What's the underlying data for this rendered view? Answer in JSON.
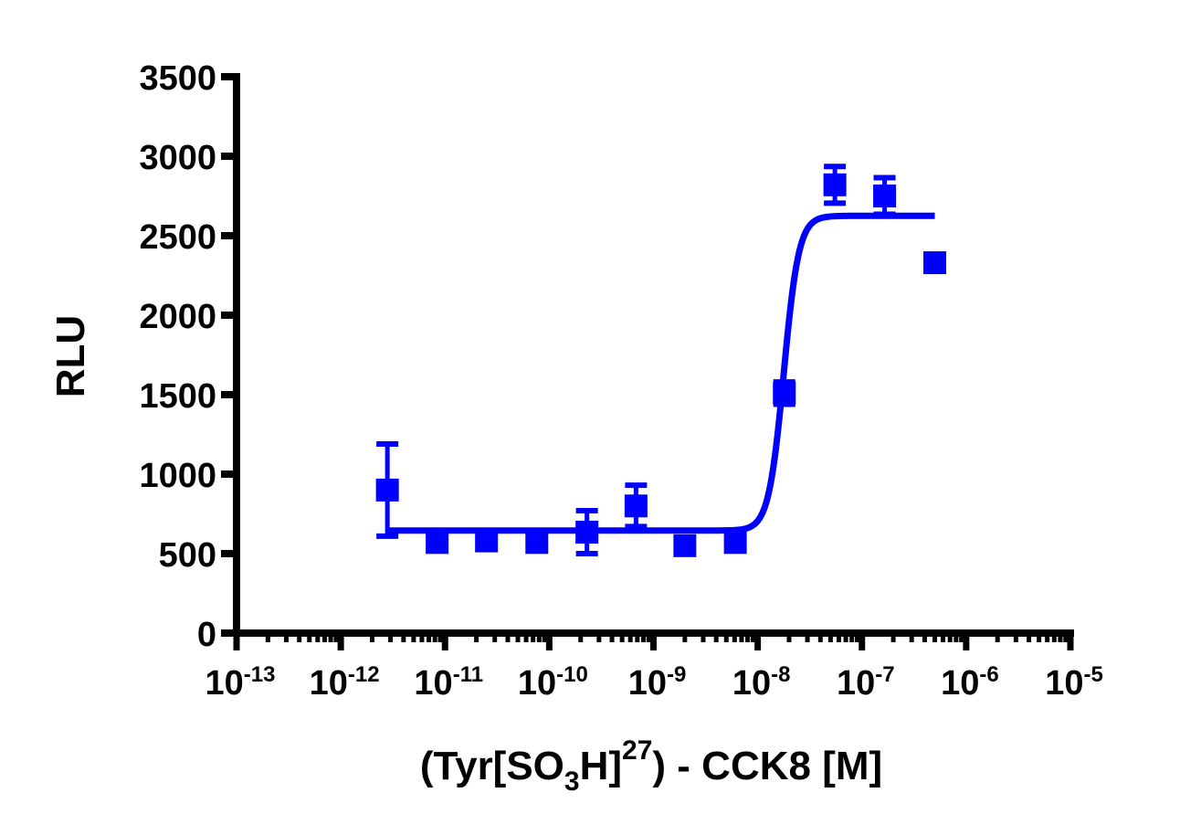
{
  "chart_data": {
    "type": "scatter",
    "title": "",
    "xlabel": "(Tyr[SO3H]27) - CCK8 [M]",
    "xlabel_parts": {
      "pre": "(Tyr[SO",
      "sub": "3",
      "mid": "H]",
      "sup": "27",
      "post": ") - CCK8 [M]"
    },
    "ylabel": "RLU",
    "xscale": "log",
    "xlim": [
      1e-13,
      1e-05
    ],
    "ylim": [
      0,
      3500
    ],
    "x_ticks": [
      -13,
      -12,
      -11,
      -10,
      -9,
      -8,
      -7,
      -6,
      -5
    ],
    "x_tick_labels": [
      "10-13",
      "10-12",
      "10-11",
      "10-10",
      "10-9",
      "10-8",
      "10-7",
      "10-6",
      "10-5"
    ],
    "y_ticks": [
      0,
      500,
      1000,
      1500,
      2000,
      2500,
      3000,
      3500
    ],
    "y_tick_labels": [
      "0",
      "500",
      "1000",
      "1500",
      "2000",
      "2500",
      "3000",
      "3500"
    ],
    "grid": false,
    "legend": null,
    "color": "#0000ff",
    "series": [
      {
        "name": "(Tyr[SO3H]27) - CCK8",
        "marker": "square",
        "x": [
          2.8e-12,
          8.4e-12,
          2.5e-11,
          7.6e-11,
          2.3e-10,
          6.8e-10,
          2e-09,
          6.1e-09,
          1.8e-08,
          5.5e-08,
          1.65e-07,
          5e-07
        ],
        "y": [
          900,
          570,
          580,
          570,
          635,
          800,
          550,
          570,
          1510,
          2820,
          2750,
          2330
        ],
        "err": [
          290,
          20,
          30,
          20,
          135,
          130,
          50,
          20,
          70,
          115,
          115,
          20
        ]
      }
    ],
    "fit": {
      "type": "sigmoidal dose-response",
      "bottom": 645,
      "top": 2625,
      "log_ec50": -7.75,
      "hill_slope": 6,
      "x_range": [
        2.8e-12,
        5e-07
      ]
    }
  }
}
